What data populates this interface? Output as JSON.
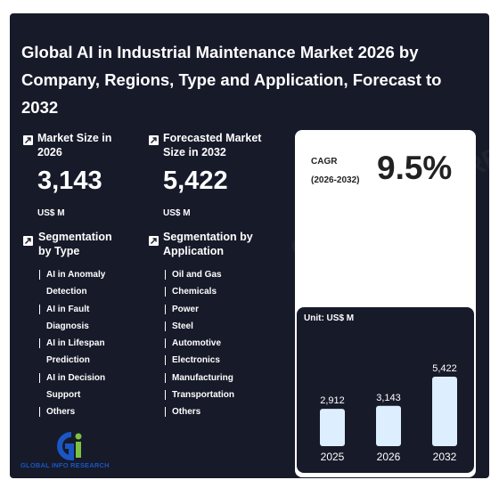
{
  "title": "Global AI in Industrial Maintenance Market 2026 by Company, Regions, Type and Application, Forecast to 2032",
  "market_size": {
    "label": "Market Size in 2026",
    "value": "3,143",
    "unit": "US$ M"
  },
  "forecast": {
    "label": "Forecasted Market Size in 2032",
    "value": "5,422",
    "unit": "US$ M"
  },
  "segmentation_type": {
    "label": "Segmentation by Type",
    "items": [
      "AI in Anomaly Detection",
      "AI in Fault Diagnosis",
      "AI in Lifespan Prediction",
      "AI in Decision Support",
      "Others"
    ]
  },
  "segmentation_application": {
    "label": "Segmentation by Application",
    "items": [
      "Oil and Gas",
      "Chemicals",
      "Power",
      "Steel",
      "Automotive",
      "Electronics",
      "Manufacturing",
      "Transportation",
      "Others"
    ]
  },
  "cagr": {
    "label": "CAGR",
    "period": "(2026-2032)",
    "value": "9.5%"
  },
  "logo": {
    "text": "GLOBAL INFO RESEARCH"
  },
  "watermark": "GLOBAL INFO RESEARCH",
  "colors": {
    "background": "#171a29",
    "bar": "#ddeeff",
    "logo_blue": "#1a56c4",
    "logo_green": "#7cc242"
  },
  "chart_data": {
    "type": "bar",
    "unit_label": "Unit: US$ M",
    "categories": [
      "2025",
      "2026",
      "2032"
    ],
    "values": [
      2912,
      3143,
      5422
    ],
    "value_labels": [
      "2,912",
      "3,143",
      "5,422"
    ]
  }
}
